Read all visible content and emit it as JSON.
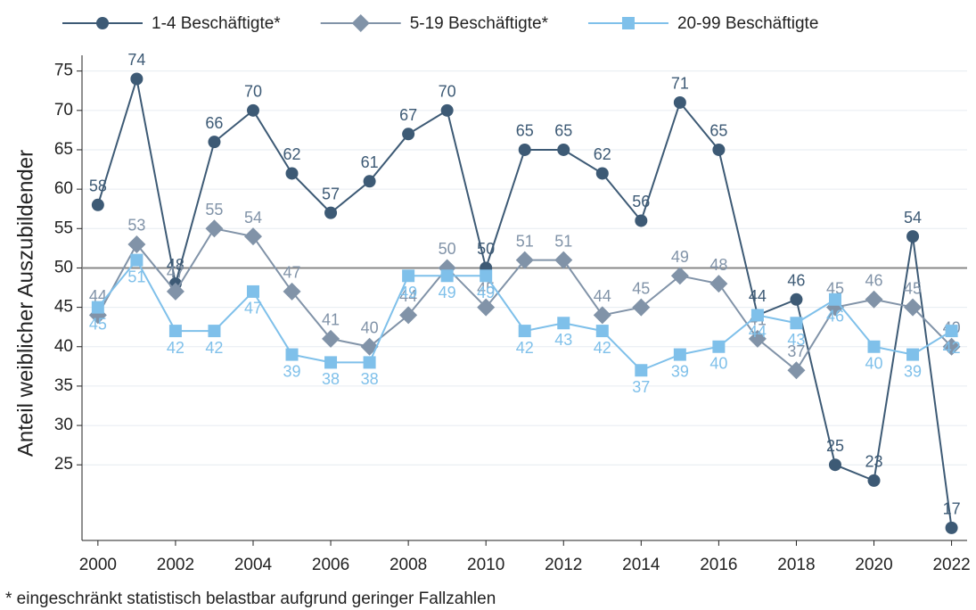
{
  "chart_data": {
    "type": "line",
    "y_label": "Anteil weiblicher Auszubildender",
    "footnote": "* eingeschränkt statistisch belastbar aufgrund geringer Fallzahlen",
    "x": [
      2000,
      2001,
      2002,
      2003,
      2004,
      2005,
      2006,
      2007,
      2008,
      2009,
      2010,
      2011,
      2012,
      2013,
      2014,
      2015,
      2016,
      2017,
      2018,
      2019,
      2020,
      2021,
      2022
    ],
    "series": [
      {
        "name": "1-4 Beschäftigte*",
        "color": "#3d5a75",
        "marker": "circle",
        "label_pos": "above",
        "values": [
          58,
          74,
          48,
          66,
          70,
          62,
          57,
          61,
          67,
          70,
          50,
          65,
          65,
          62,
          56,
          71,
          65,
          44,
          46,
          25,
          23,
          54,
          17
        ]
      },
      {
        "name": "5-19 Beschäftigte*",
        "color": "#8193a8",
        "marker": "diamond",
        "label_pos": "above",
        "values": [
          44,
          53,
          47,
          55,
          54,
          47,
          41,
          40,
          44,
          50,
          45,
          51,
          51,
          44,
          45,
          49,
          48,
          41,
          37,
          45,
          46,
          45,
          40
        ]
      },
      {
        "name": "20-99 Beschäftigte",
        "color": "#7fc0ea",
        "marker": "square",
        "label_pos": "below",
        "values": [
          45,
          51,
          42,
          42,
          47,
          39,
          38,
          38,
          49,
          49,
          49,
          42,
          43,
          42,
          37,
          39,
          40,
          44,
          43,
          46,
          40,
          39,
          42
        ]
      }
    ],
    "reference_line": 50,
    "xlim": [
      1999.59,
      2022.4
    ],
    "xticks": [
      2000,
      2002,
      2004,
      2006,
      2008,
      2010,
      2012,
      2014,
      2016,
      2018,
      2020,
      2022
    ],
    "ylim": [
      15.4,
      77
    ],
    "yticks": [
      25,
      30,
      35,
      40,
      45,
      50,
      55,
      60,
      65,
      70,
      75
    ],
    "grid": true,
    "legend": "top"
  }
}
